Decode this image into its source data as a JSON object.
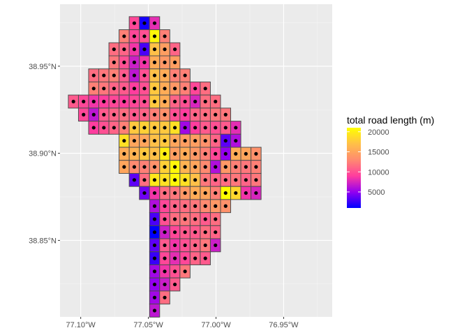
{
  "chart_data": {
    "type": "heatmap",
    "title": "",
    "xlabel": "",
    "ylabel": "",
    "x_ticks": [
      {
        "value": -77.1,
        "label": "77.10°W"
      },
      {
        "value": -77.05,
        "label": "77.05°W"
      },
      {
        "value": -77.0,
        "label": "77.00°W"
      },
      {
        "value": -76.95,
        "label": "76.95°W"
      }
    ],
    "y_ticks": [
      {
        "value": 38.85,
        "label": "38.85°N"
      },
      {
        "value": 38.9,
        "label": "38.90°N"
      },
      {
        "value": 38.95,
        "label": "38.95°N"
      }
    ],
    "xlim": [
      -77.1153,
      -76.9141
    ],
    "ylim": [
      38.8061,
      38.9856
    ],
    "cell_size_deg": 0.0075,
    "grid": true,
    "legend": {
      "title": "total road length (m)",
      "position": "right",
      "range": [
        1000,
        21000
      ],
      "ticks": [
        {
          "value": 5000,
          "label": "5000"
        },
        {
          "value": 10000,
          "label": "10000"
        },
        {
          "value": 15000,
          "label": "15000"
        },
        {
          "value": 20000,
          "label": "20000"
        }
      ],
      "colors": [
        "#0000ff",
        "#9400f0",
        "#ff3d9e",
        "#ff8a70",
        "#ffc048",
        "#ffff00"
      ]
    },
    "grid_origin": {
      "lon": -77.1054,
      "lat": 38.8147
    },
    "rows": [
      {
        "lat": 38.9747,
        "cells": [
          [
            6,
            9500
          ],
          [
            7,
            1500
          ],
          [
            8,
            8000
          ]
        ]
      },
      {
        "lat": 38.9672,
        "cells": [
          [
            5,
            12500
          ],
          [
            6,
            9500
          ],
          [
            7,
            10000
          ],
          [
            8,
            20500
          ],
          [
            9,
            12500
          ]
        ]
      },
      {
        "lat": 38.9597,
        "cells": [
          [
            4,
            11500
          ],
          [
            5,
            11000
          ],
          [
            6,
            8500
          ],
          [
            7,
            3000
          ],
          [
            8,
            17000
          ],
          [
            9,
            14500
          ],
          [
            10,
            11000
          ]
        ]
      },
      {
        "lat": 38.9522,
        "cells": [
          [
            4,
            12000
          ],
          [
            5,
            10000
          ],
          [
            6,
            7000
          ],
          [
            7,
            8500
          ],
          [
            8,
            15500
          ],
          [
            9,
            14000
          ],
          [
            10,
            14500
          ]
        ]
      },
      {
        "lat": 38.9447,
        "cells": [
          [
            2,
            11500
          ],
          [
            3,
            12000
          ],
          [
            4,
            12500
          ],
          [
            5,
            10500
          ],
          [
            6,
            6500
          ],
          [
            7,
            10000
          ],
          [
            8,
            17000
          ],
          [
            9,
            15500
          ],
          [
            10,
            12500
          ],
          [
            11,
            12500
          ]
        ]
      },
      {
        "lat": 38.9372,
        "cells": [
          [
            2,
            12500
          ],
          [
            3,
            12000
          ],
          [
            4,
            11000
          ],
          [
            5,
            10500
          ],
          [
            6,
            9000
          ],
          [
            7,
            10000
          ],
          [
            8,
            17500
          ],
          [
            9,
            15500
          ],
          [
            10,
            14000
          ],
          [
            11,
            12500
          ],
          [
            12,
            9500
          ],
          [
            13,
            11500
          ]
        ]
      },
      {
        "lat": 38.9297,
        "cells": [
          [
            0,
            10500
          ],
          [
            1,
            9500
          ],
          [
            2,
            8500
          ],
          [
            3,
            9000
          ],
          [
            4,
            9500
          ],
          [
            5,
            9000
          ],
          [
            6,
            9500
          ],
          [
            7,
            10000
          ],
          [
            8,
            17500
          ],
          [
            9,
            15500
          ],
          [
            10,
            11000
          ],
          [
            11,
            10000
          ],
          [
            12,
            7500
          ],
          [
            13,
            11500
          ],
          [
            14,
            11500
          ]
        ]
      },
      {
        "lat": 38.9222,
        "cells": [
          [
            1,
            9500
          ],
          [
            2,
            6500
          ],
          [
            3,
            10500
          ],
          [
            4,
            11000
          ],
          [
            5,
            11500
          ],
          [
            6,
            10500
          ],
          [
            7,
            11000
          ],
          [
            8,
            12500
          ],
          [
            9,
            13500
          ],
          [
            10,
            10000
          ],
          [
            11,
            9000
          ],
          [
            12,
            11000
          ],
          [
            13,
            11500
          ],
          [
            14,
            12000
          ],
          [
            15,
            12000
          ]
        ]
      },
      {
        "lat": 38.9147,
        "cells": [
          [
            2,
            9000
          ],
          [
            3,
            10000
          ],
          [
            4,
            11000
          ],
          [
            5,
            12500
          ],
          [
            6,
            17500
          ],
          [
            7,
            18000
          ],
          [
            8,
            17500
          ],
          [
            9,
            17500
          ],
          [
            10,
            19000
          ],
          [
            11,
            5500
          ],
          [
            12,
            9000
          ],
          [
            13,
            10500
          ],
          [
            14,
            10000
          ],
          [
            15,
            10500
          ],
          [
            16,
            8000
          ]
        ]
      },
      {
        "lat": 38.9072,
        "cells": [
          [
            5,
            19000
          ],
          [
            6,
            15000
          ],
          [
            7,
            15000
          ],
          [
            8,
            17000
          ],
          [
            9,
            17500
          ],
          [
            10,
            15000
          ],
          [
            11,
            14500
          ],
          [
            12,
            14500
          ],
          [
            13,
            13500
          ],
          [
            14,
            11000
          ],
          [
            15,
            3500
          ],
          [
            16,
            6000
          ]
        ]
      },
      {
        "lat": 38.8997,
        "cells": [
          [
            5,
            15500
          ],
          [
            6,
            16000
          ],
          [
            7,
            17500
          ],
          [
            8,
            17000
          ],
          [
            9,
            20000
          ],
          [
            10,
            14500
          ],
          [
            11,
            15500
          ],
          [
            12,
            14000
          ],
          [
            13,
            12500
          ],
          [
            14,
            9500
          ],
          [
            15,
            5000
          ],
          [
            16,
            15500
          ],
          [
            17,
            15000
          ],
          [
            18,
            13500
          ]
        ]
      },
      {
        "lat": 38.8922,
        "cells": [
          [
            5,
            15000
          ],
          [
            6,
            13000
          ],
          [
            7,
            12500
          ],
          [
            8,
            13500
          ],
          [
            9,
            18000
          ],
          [
            10,
            20500
          ],
          [
            11,
            16000
          ],
          [
            12,
            15000
          ],
          [
            13,
            13000
          ],
          [
            14,
            6000
          ],
          [
            15,
            14000
          ],
          [
            16,
            12500
          ],
          [
            17,
            12000
          ],
          [
            18,
            12500
          ]
        ]
      },
      {
        "lat": 38.8847,
        "cells": [
          [
            6,
            3500
          ],
          [
            7,
            11500
          ],
          [
            8,
            19500
          ],
          [
            9,
            19000
          ],
          [
            10,
            20500
          ],
          [
            11,
            19000
          ],
          [
            12,
            17000
          ],
          [
            13,
            12000
          ],
          [
            14,
            11000
          ],
          [
            15,
            11500
          ],
          [
            16,
            12000
          ],
          [
            17,
            11000
          ],
          [
            18,
            12000
          ]
        ]
      },
      {
        "lat": 38.8772,
        "cells": [
          [
            7,
            4000
          ],
          [
            8,
            8500
          ],
          [
            9,
            11500
          ],
          [
            10,
            12000
          ],
          [
            11,
            14000
          ],
          [
            12,
            15500
          ],
          [
            13,
            15000
          ],
          [
            14,
            12500
          ],
          [
            15,
            21000
          ],
          [
            16,
            18500
          ],
          [
            17,
            8500
          ],
          [
            18,
            7500
          ]
        ]
      },
      {
        "lat": 38.8697,
        "cells": [
          [
            8,
            6000
          ],
          [
            9,
            9500
          ],
          [
            10,
            11000
          ],
          [
            11,
            11500
          ],
          [
            12,
            12000
          ],
          [
            13,
            13000
          ],
          [
            14,
            14000
          ],
          [
            15,
            13500
          ]
        ]
      },
      {
        "lat": 38.8622,
        "cells": [
          [
            8,
            3000
          ],
          [
            9,
            10000
          ],
          [
            10,
            11500
          ],
          [
            11,
            12000
          ],
          [
            12,
            11500
          ],
          [
            13,
            10500
          ],
          [
            14,
            11500
          ]
        ]
      },
      {
        "lat": 38.8547,
        "cells": [
          [
            8,
            1000
          ],
          [
            9,
            7000
          ],
          [
            10,
            9500
          ],
          [
            11,
            10500
          ],
          [
            12,
            10500
          ],
          [
            13,
            11500
          ],
          [
            14,
            11000
          ]
        ]
      },
      {
        "lat": 38.8472,
        "cells": [
          [
            8,
            3500
          ],
          [
            9,
            10500
          ],
          [
            10,
            8500
          ],
          [
            11,
            10000
          ],
          [
            12,
            11000
          ],
          [
            13,
            12000
          ],
          [
            14,
            7000
          ]
        ]
      },
      {
        "lat": 38.8397,
        "cells": [
          [
            8,
            2500
          ],
          [
            9,
            9500
          ],
          [
            10,
            8000
          ],
          [
            11,
            9500
          ],
          [
            12,
            11000
          ],
          [
            13,
            10500
          ]
        ]
      },
      {
        "lat": 38.8322,
        "cells": [
          [
            8,
            5500
          ],
          [
            9,
            8500
          ],
          [
            10,
            10000
          ],
          [
            11,
            12000
          ]
        ]
      },
      {
        "lat": 38.8247,
        "cells": [
          [
            8,
            5000
          ],
          [
            9,
            7000
          ],
          [
            10,
            10500
          ]
        ]
      },
      {
        "lat": 38.8172,
        "cells": [
          [
            8,
            5500
          ],
          [
            9,
            11500
          ]
        ]
      },
      {
        "lat": 38.8097,
        "cells": [
          [
            8,
            6500
          ]
        ]
      }
    ]
  }
}
